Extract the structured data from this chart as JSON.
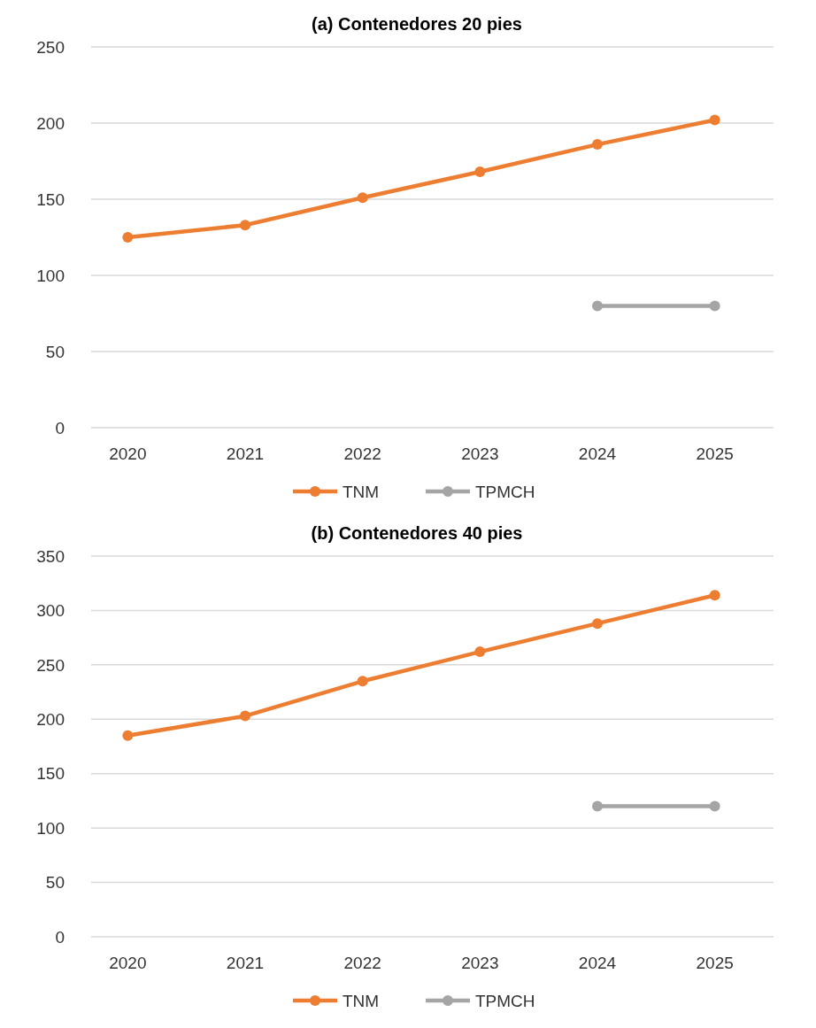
{
  "chart_data": [
    {
      "type": "line",
      "title": "(a) Contenedores 20 pies",
      "categories": [
        "2020",
        "2021",
        "2022",
        "2023",
        "2024",
        "2025"
      ],
      "series": [
        {
          "name": "TNM",
          "color": "#ed7d31",
          "values": [
            125,
            133,
            151,
            168,
            186,
            202
          ]
        },
        {
          "name": "TPMCH",
          "color": "#a5a5a5",
          "values": [
            null,
            null,
            null,
            null,
            80,
            80
          ]
        }
      ],
      "ylim": [
        0,
        250
      ],
      "yticks": [
        0,
        50,
        100,
        150,
        200,
        250
      ],
      "grid": "y",
      "legend": "bottom",
      "marker": "circle",
      "line_style": "solid"
    },
    {
      "type": "line",
      "title": "(b) Contenedores 40 pies",
      "categories": [
        "2020",
        "2021",
        "2022",
        "2023",
        "2024",
        "2025"
      ],
      "series": [
        {
          "name": "TNM",
          "color": "#ed7d31",
          "values": [
            185,
            203,
            235,
            262,
            288,
            314
          ]
        },
        {
          "name": "TPMCH",
          "color": "#a5a5a5",
          "values": [
            null,
            null,
            null,
            null,
            120,
            120
          ]
        }
      ],
      "ylim": [
        0,
        350
      ],
      "yticks": [
        0,
        50,
        100,
        150,
        200,
        250,
        300,
        350
      ],
      "grid": "y",
      "legend": "bottom",
      "marker": "circle",
      "line_style": "solid"
    }
  ]
}
